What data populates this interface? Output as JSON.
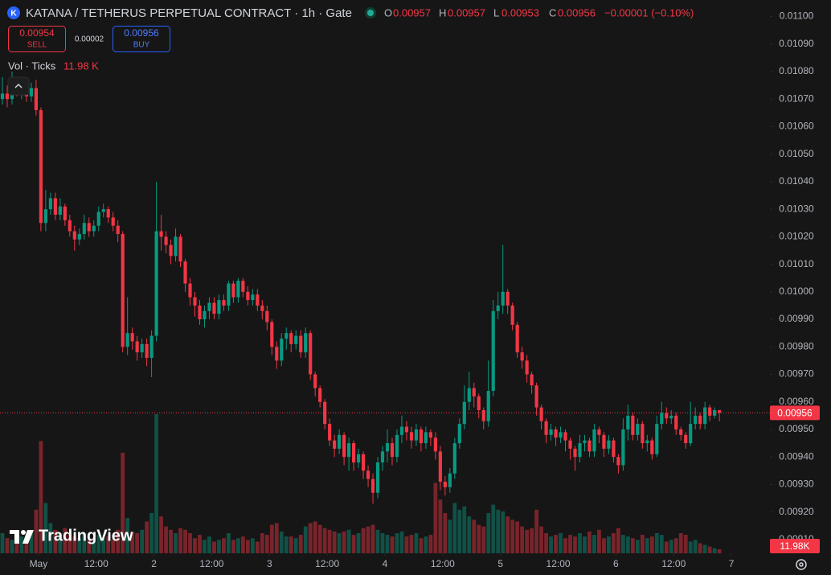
{
  "header": {
    "logo": "K",
    "title": "KATANA / TETHERUS PERPETUAL CONTRACT · 1h · Gate",
    "o": "O",
    "h": "H",
    "l": "L",
    "c": "C",
    "change": "−0.00001 (−0.10%)",
    "sell_price": "0.00954",
    "sell": "SELL",
    "spread": "0.00002",
    "buy_price": "0.00956",
    "buy": "BUY",
    "indicator": "Vol · Ticks",
    "indicator_value": "11.98 K",
    "volume_badge": "11.98K",
    "brand": "TradingView"
  },
  "chart_data": {
    "type": "candlestick",
    "up_color": "#089981",
    "down_color": "#f23645",
    "xlim": [
      0,
      160
    ],
    "xticks": [
      {
        "value": 8,
        "label": "May"
      },
      {
        "value": 20,
        "label": "12:00"
      },
      {
        "value": 32,
        "label": "2"
      },
      {
        "value": 44,
        "label": "12:00"
      },
      {
        "value": 56,
        "label": "3"
      },
      {
        "value": 68,
        "label": "12:00"
      },
      {
        "value": 80,
        "label": "4"
      },
      {
        "value": 92,
        "label": "12:00"
      },
      {
        "value": 104,
        "label": "5"
      },
      {
        "value": 116,
        "label": "12:00"
      },
      {
        "value": 128,
        "label": "6"
      },
      {
        "value": 140,
        "label": "12:00"
      },
      {
        "value": 152,
        "label": "7"
      }
    ],
    "ylim": [
      0.00905,
      0.01106
    ],
    "yticks": [
      {
        "value": 0.0091,
        "label": "0.00910"
      },
      {
        "value": 0.0092,
        "label": "0.00920"
      },
      {
        "value": 0.0093,
        "label": "0.00930"
      },
      {
        "value": 0.0094,
        "label": "0.00940"
      },
      {
        "value": 0.0095,
        "label": "0.00950"
      },
      {
        "value": 0.0096,
        "label": "0.00960"
      },
      {
        "value": 0.0097,
        "label": "0.00970"
      },
      {
        "value": 0.0098,
        "label": "0.00980"
      },
      {
        "value": 0.0099,
        "label": "0.00990"
      },
      {
        "value": 0.01,
        "label": "0.01000"
      },
      {
        "value": 0.0101,
        "label": "0.01010"
      },
      {
        "value": 0.0102,
        "label": "0.01020"
      },
      {
        "value": 0.0103,
        "label": "0.01030"
      },
      {
        "value": 0.0104,
        "label": "0.01040"
      },
      {
        "value": 0.0105,
        "label": "0.01050"
      },
      {
        "value": 0.0106,
        "label": "0.01060"
      },
      {
        "value": 0.0107,
        "label": "0.01070"
      },
      {
        "value": 0.0108,
        "label": "0.01080"
      },
      {
        "value": 0.0109,
        "label": "0.01090"
      },
      {
        "value": 0.011,
        "label": "0.01100"
      }
    ],
    "open": [
      0.0107,
      0.01072,
      0.0107,
      0.01076,
      0.01073,
      0.01075,
      0.01071,
      0.01074,
      0.01066,
      0.01025,
      0.0103,
      0.01034,
      0.01028,
      0.01031,
      0.01026,
      0.01022,
      0.01019,
      0.01021,
      0.01025,
      0.01022,
      0.01024,
      0.01029,
      0.0103,
      0.01027,
      0.01024,
      0.01021,
      0.0098,
      0.00985,
      0.00982,
      0.00978,
      0.00981,
      0.00976,
      0.00984,
      0.01022,
      0.0102,
      0.01017,
      0.01013,
      0.0102,
      0.01011,
      0.01003,
      0.00998,
      0.00995,
      0.0099,
      0.00993,
      0.00996,
      0.00992,
      0.00997,
      0.00995,
      0.01003,
      0.00998,
      0.01004,
      0.01,
      0.00997,
      0.00999,
      0.00995,
      0.00993,
      0.00989,
      0.0098,
      0.00975,
      0.00983,
      0.00985,
      0.00981,
      0.00984,
      0.00978,
      0.00985,
      0.0097,
      0.00965,
      0.0096,
      0.00952,
      0.00946,
      0.00943,
      0.00948,
      0.0094,
      0.00945,
      0.00938,
      0.00941,
      0.00935,
      0.00932,
      0.00927,
      0.00938,
      0.00942,
      0.00945,
      0.0094,
      0.00948,
      0.00951,
      0.00949,
      0.00946,
      0.0095,
      0.00945,
      0.00949,
      0.00947,
      0.00942,
      0.00931,
      0.00929,
      0.00934,
      0.00945,
      0.00952,
      0.0096,
      0.00965,
      0.00962,
      0.00957,
      0.00953,
      0.00964,
      0.00993,
      0.00995,
      0.01,
      0.00995,
      0.00988,
      0.00978,
      0.00975,
      0.0097,
      0.00966,
      0.00958,
      0.00953,
      0.00948,
      0.0095,
      0.00947,
      0.00949,
      0.00946,
      0.00943,
      0.0094,
      0.00945,
      0.00946,
      0.00942,
      0.0095,
      0.00948,
      0.00943,
      0.00946,
      0.0094,
      0.00937,
      0.0095,
      0.00955,
      0.00948,
      0.00952,
      0.00945,
      0.00946,
      0.00941,
      0.00952,
      0.00956,
      0.00954,
      0.00955,
      0.0095,
      0.00948,
      0.00945,
      0.00952,
      0.00955,
      0.00952,
      0.00958,
      0.00955,
      0.00957
    ],
    "high": [
      0.01078,
      0.01075,
      0.0108,
      0.01078,
      0.01077,
      0.01077,
      0.01076,
      0.01077,
      0.01067,
      0.01037,
      0.01036,
      0.01036,
      0.01034,
      0.01032,
      0.01028,
      0.01024,
      0.01023,
      0.01028,
      0.01027,
      0.01026,
      0.01031,
      0.01032,
      0.01031,
      0.01029,
      0.01026,
      0.01022,
      0.00998,
      0.00987,
      0.00984,
      0.00983,
      0.00983,
      0.00986,
      0.0104,
      0.01028,
      0.01022,
      0.01019,
      0.01023,
      0.01021,
      0.01012,
      0.01005,
      0.01,
      0.00997,
      0.00995,
      0.00998,
      0.00998,
      0.00999,
      0.00999,
      0.01004,
      0.01004,
      0.01005,
      0.01005,
      0.01002,
      0.01001,
      0.01001,
      0.00997,
      0.00995,
      0.0099,
      0.00982,
      0.00985,
      0.00987,
      0.00986,
      0.00986,
      0.00986,
      0.00987,
      0.00986,
      0.00971,
      0.00966,
      0.00961,
      0.00954,
      0.00948,
      0.0095,
      0.00949,
      0.00947,
      0.00946,
      0.00943,
      0.00942,
      0.00937,
      0.00934,
      0.0094,
      0.00944,
      0.0095,
      0.00947,
      0.0095,
      0.00955,
      0.00953,
      0.00951,
      0.00952,
      0.00951,
      0.00951,
      0.0095,
      0.00949,
      0.00944,
      0.00933,
      0.00936,
      0.00947,
      0.00954,
      0.00966,
      0.00971,
      0.00967,
      0.00963,
      0.00958,
      0.00975,
      0.00997,
      0.01,
      0.01017,
      0.01001,
      0.00996,
      0.00989,
      0.0098,
      0.00977,
      0.00971,
      0.00967,
      0.00959,
      0.00954,
      0.00952,
      0.00951,
      0.00951,
      0.0095,
      0.00947,
      0.00944,
      0.00948,
      0.00948,
      0.00947,
      0.00952,
      0.00951,
      0.00949,
      0.00948,
      0.00947,
      0.00941,
      0.00954,
      0.00959,
      0.00956,
      0.00954,
      0.00953,
      0.00948,
      0.00947,
      0.00955,
      0.0096,
      0.00958,
      0.00957,
      0.00956,
      0.00951,
      0.00949,
      0.0096,
      0.00958,
      0.00956,
      0.0096,
      0.00959,
      0.00958,
      0.00957
    ],
    "low": [
      0.01068,
      0.01067,
      0.01068,
      0.01071,
      0.0107,
      0.01069,
      0.01069,
      0.01064,
      0.01022,
      0.01022,
      0.01028,
      0.01026,
      0.01026,
      0.01024,
      0.0102,
      0.01015,
      0.01017,
      0.01019,
      0.0102,
      0.0102,
      0.01022,
      0.01027,
      0.01025,
      0.01022,
      0.01018,
      0.00978,
      0.00977,
      0.00979,
      0.00975,
      0.00976,
      0.00973,
      0.00969,
      0.00982,
      0.01015,
      0.01014,
      0.0101,
      0.01011,
      0.01009,
      0.01,
      0.00995,
      0.00991,
      0.00988,
      0.00987,
      0.0099,
      0.0099,
      0.0099,
      0.00993,
      0.00993,
      0.00996,
      0.00996,
      0.00998,
      0.00995,
      0.00995,
      0.00993,
      0.0099,
      0.00986,
      0.00977,
      0.00972,
      0.00973,
      0.00979,
      0.00978,
      0.00979,
      0.00976,
      0.00976,
      0.00968,
      0.00962,
      0.00958,
      0.0095,
      0.00944,
      0.0094,
      0.00941,
      0.00937,
      0.00935,
      0.00935,
      0.00936,
      0.00932,
      0.00929,
      0.00923,
      0.00925,
      0.00935,
      0.00938,
      0.00937,
      0.00938,
      0.00945,
      0.00946,
      0.00943,
      0.00944,
      0.00942,
      0.00943,
      0.00944,
      0.00939,
      0.00928,
      0.00926,
      0.00927,
      0.00932,
      0.00943,
      0.0095,
      0.00957,
      0.00958,
      0.00954,
      0.0095,
      0.00951,
      0.00962,
      0.0099,
      0.00992,
      0.00992,
      0.00986,
      0.00976,
      0.00972,
      0.00967,
      0.00963,
      0.00955,
      0.0095,
      0.00945,
      0.00946,
      0.00944,
      0.00945,
      0.00942,
      0.00939,
      0.00935,
      0.00938,
      0.00942,
      0.0094,
      0.0094,
      0.00945,
      0.0094,
      0.00941,
      0.00938,
      0.00934,
      0.00935,
      0.00946,
      0.00946,
      0.00946,
      0.00943,
      0.00942,
      0.00939,
      0.0094,
      0.0095,
      0.00952,
      0.00952,
      0.00948,
      0.00946,
      0.00943,
      0.00944,
      0.0095,
      0.0095,
      0.0095,
      0.00953,
      0.00954,
      0.00953
    ],
    "close": [
      0.01072,
      0.0107,
      0.01076,
      0.01073,
      0.01075,
      0.01071,
      0.01074,
      0.01066,
      0.01025,
      0.0103,
      0.01034,
      0.01028,
      0.01031,
      0.01026,
      0.01022,
      0.01019,
      0.01021,
      0.01025,
      0.01022,
      0.01024,
      0.01029,
      0.0103,
      0.01027,
      0.01024,
      0.01021,
      0.0098,
      0.00985,
      0.00982,
      0.00978,
      0.00981,
      0.00976,
      0.00984,
      0.01022,
      0.0102,
      0.01017,
      0.01013,
      0.0102,
      0.01011,
      0.01003,
      0.00998,
      0.00995,
      0.0099,
      0.00993,
      0.00996,
      0.00992,
      0.00997,
      0.00995,
      0.01003,
      0.00998,
      0.01004,
      0.01,
      0.00997,
      0.00999,
      0.00995,
      0.00993,
      0.00989,
      0.0098,
      0.00975,
      0.00983,
      0.00985,
      0.00981,
      0.00984,
      0.00978,
      0.00985,
      0.0097,
      0.00965,
      0.0096,
      0.00952,
      0.00946,
      0.00943,
      0.00948,
      0.0094,
      0.00945,
      0.00938,
      0.00941,
      0.00935,
      0.00932,
      0.00927,
      0.00938,
      0.00942,
      0.00945,
      0.0094,
      0.00948,
      0.00951,
      0.00949,
      0.00946,
      0.0095,
      0.00945,
      0.00949,
      0.00947,
      0.00942,
      0.00931,
      0.00929,
      0.00934,
      0.00945,
      0.00952,
      0.0096,
      0.00965,
      0.00962,
      0.00957,
      0.00953,
      0.00964,
      0.00993,
      0.00995,
      0.01,
      0.00995,
      0.00988,
      0.00978,
      0.00975,
      0.0097,
      0.00966,
      0.00958,
      0.00953,
      0.00948,
      0.0095,
      0.00947,
      0.00949,
      0.00946,
      0.00943,
      0.0094,
      0.00945,
      0.00946,
      0.00942,
      0.0095,
      0.00948,
      0.00943,
      0.00946,
      0.0094,
      0.00937,
      0.0095,
      0.00955,
      0.00948,
      0.00952,
      0.00945,
      0.00946,
      0.00941,
      0.00952,
      0.00956,
      0.00954,
      0.00955,
      0.0095,
      0.00948,
      0.00945,
      0.00952,
      0.00955,
      0.00952,
      0.00958,
      0.00955,
      0.00957,
      0.00956
    ],
    "volume": [
      60,
      45,
      40,
      55,
      50,
      35,
      70,
      130,
      335,
      150,
      90,
      70,
      60,
      75,
      55,
      50,
      45,
      60,
      40,
      35,
      55,
      45,
      50,
      40,
      70,
      300,
      105,
      65,
      60,
      70,
      95,
      120,
      415,
      110,
      80,
      70,
      60,
      75,
      70,
      60,
      45,
      55,
      40,
      50,
      35,
      40,
      45,
      60,
      40,
      45,
      50,
      40,
      45,
      35,
      60,
      55,
      85,
      90,
      65,
      50,
      50,
      45,
      55,
      80,
      90,
      95,
      85,
      75,
      70,
      65,
      60,
      65,
      70,
      55,
      60,
      75,
      80,
      85,
      70,
      60,
      55,
      50,
      60,
      65,
      50,
      55,
      60,
      45,
      50,
      55,
      210,
      160,
      120,
      100,
      150,
      130,
      140,
      110,
      100,
      85,
      80,
      120,
      145,
      130,
      125,
      110,
      100,
      95,
      80,
      70,
      75,
      130,
      80,
      60,
      50,
      55,
      60,
      45,
      55,
      50,
      60,
      50,
      65,
      55,
      70,
      45,
      50,
      60,
      75,
      55,
      50,
      45,
      40,
      55,
      45,
      50,
      60,
      55,
      35,
      40,
      45,
      60,
      55,
      35,
      40,
      30,
      25,
      20,
      15,
      11.98
    ]
  }
}
